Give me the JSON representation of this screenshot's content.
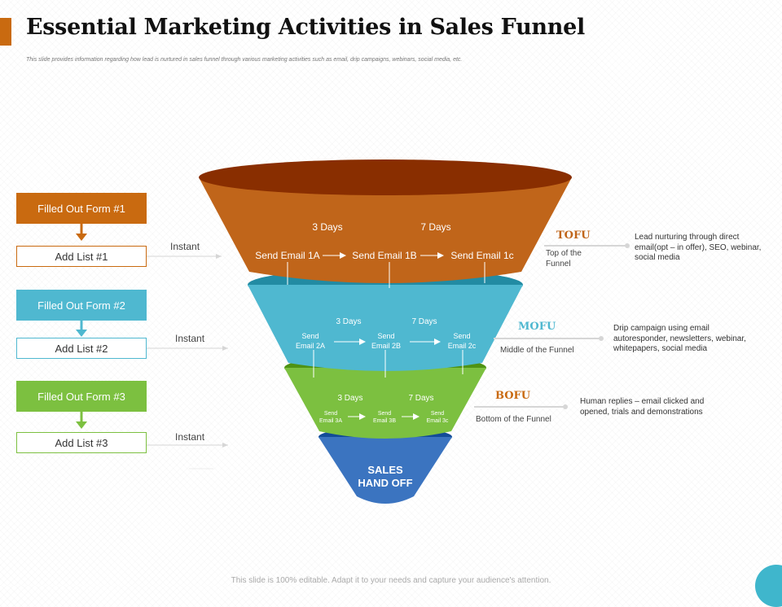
{
  "page": {
    "title": "Essential Marketing Activities in Sales Funnel",
    "subtitle": "This slide provides information  regarding  how lead  is nurtured  in sales funnel  through   various marketing   activities such as email,  drip campaigns,   webinars,  social media,  etc.",
    "footer": "This slide is 100% editable.  Adapt it to your needs and capture your audience's attention."
  },
  "colors": {
    "accent": "#c96a10",
    "tofu": "#c0651a",
    "mofu": "#4fb8d0",
    "bofu": "#7cc040",
    "handoff": "#3b74c0",
    "form1": "#c96a10",
    "form2": "#4fb8d0",
    "form3": "#7cc040"
  },
  "left_flow": [
    {
      "form": "Filled Out Form #1",
      "list": "Add List #1",
      "trigger": "Instant"
    },
    {
      "form": "Filled Out Form #2",
      "list": "Add List #2",
      "trigger": "Instant"
    },
    {
      "form": "Filled Out Form #3",
      "list": "Add List #3",
      "trigger": "Instant"
    }
  ],
  "funnel": {
    "tofu": {
      "delays": [
        "3 Days",
        "7 Days"
      ],
      "emails": [
        "Send Email 1A",
        "Send Email 1B",
        "Send Email 1c"
      ]
    },
    "mofu": {
      "delays": [
        "3 Days",
        "7 Days"
      ],
      "emails": [
        [
          "Send",
          "Email 2A"
        ],
        [
          "Send",
          "Email 2B"
        ],
        [
          "Send",
          "Email 2c"
        ]
      ]
    },
    "bofu": {
      "delays": [
        "3 Days",
        "7 Days"
      ],
      "emails": [
        [
          "Send",
          "Email 3A"
        ],
        [
          "Send",
          "Email 3B"
        ],
        [
          "Send",
          "Email 3c"
        ]
      ]
    },
    "handoff": [
      "SALES",
      "HAND OFF"
    ]
  },
  "stages": [
    {
      "code": "TOFU",
      "name_lines": [
        "Top of the",
        "Funnel"
      ],
      "desc_lines": [
        "Lead nurturing through direct",
        "email(opt – in offer), SEO, webinar,",
        "social media"
      ]
    },
    {
      "code": "MOFU",
      "name_lines": [
        "Middle of the Funnel"
      ],
      "desc_lines": [
        "Drip campaign using email",
        "autoresponder, newsletters, webinar,",
        "whitepapers, social media"
      ]
    },
    {
      "code": "BOFU",
      "name_lines": [
        "Bottom of the Funnel"
      ],
      "desc_lines": [
        "Human replies – email clicked and",
        "opened, trials and demonstrations"
      ]
    }
  ]
}
